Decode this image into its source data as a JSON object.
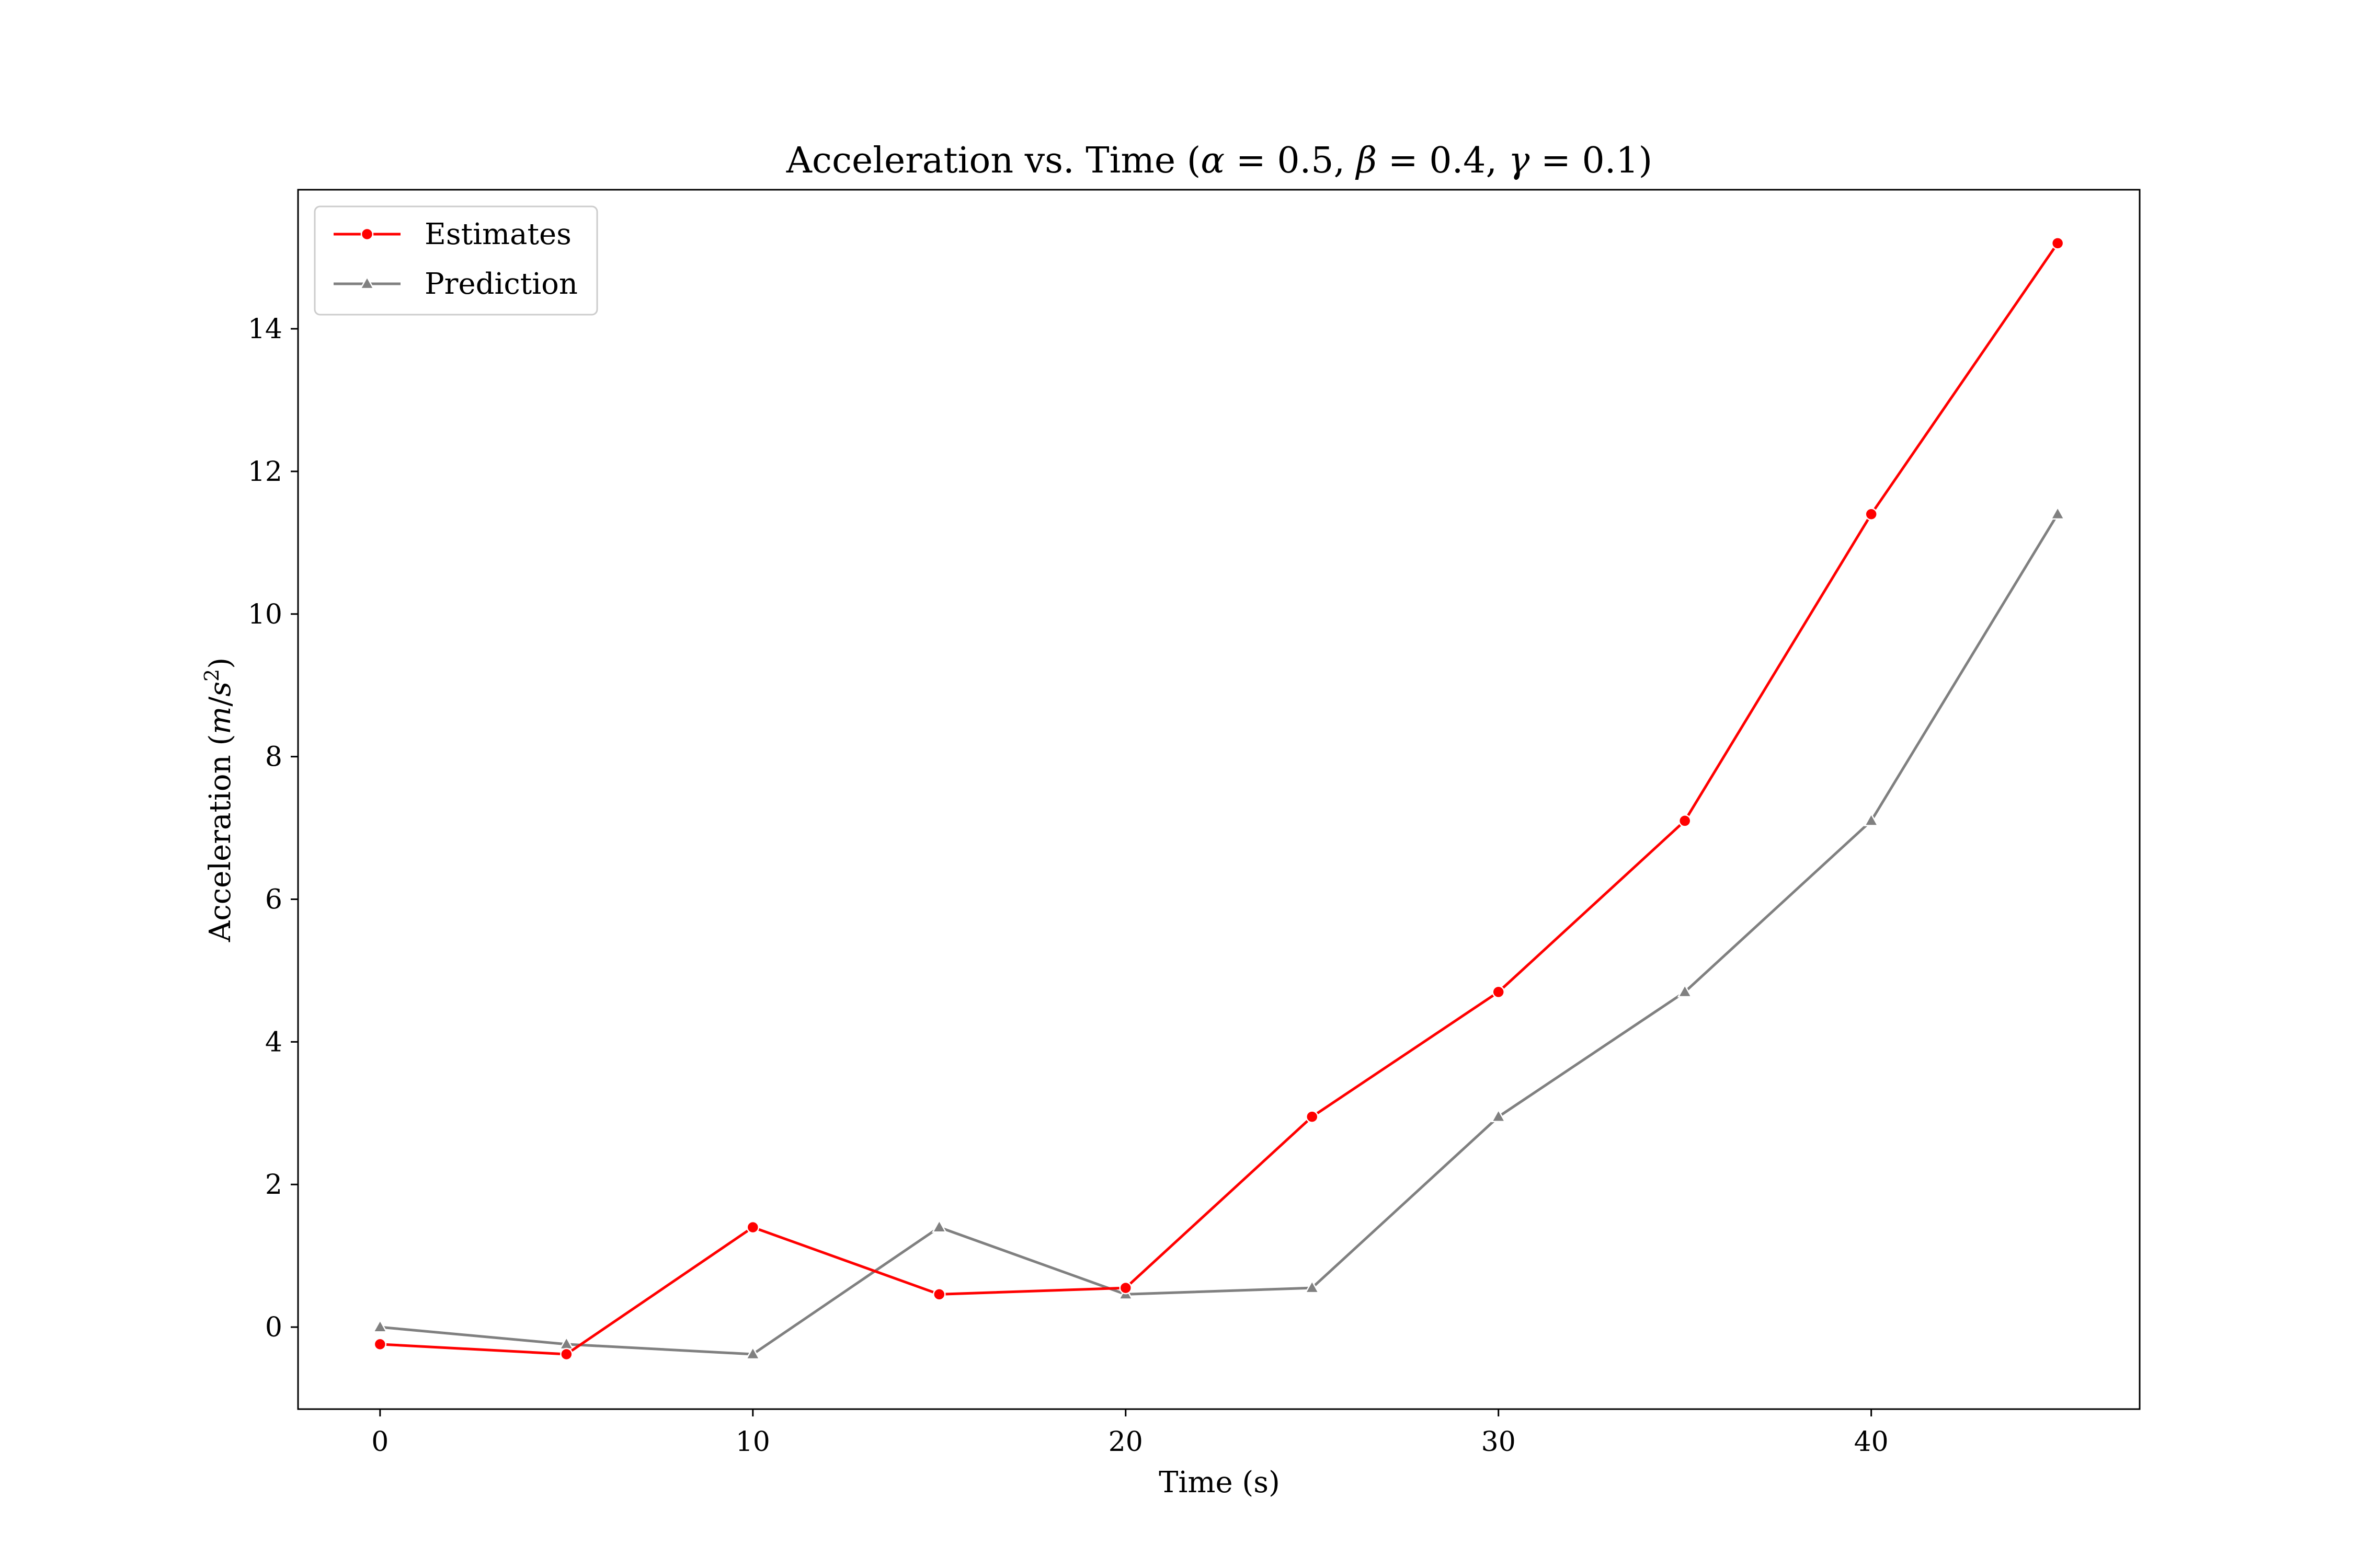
{
  "chart_data": {
    "type": "line",
    "title": {
      "prefix": "Acceleration vs. Time (",
      "alpha_sym": "α",
      "alpha_val": " = 0.5, ",
      "beta_sym": "β",
      "beta_val": " = 0.4, ",
      "gamma_sym": "γ",
      "gamma_val": " = 0.1)"
    },
    "xlabel": "Time (s)",
    "ylabel": {
      "prefix": "Acceleration (",
      "unit_m": "m",
      "unit_slash": "/",
      "unit_s": "s",
      "unit_exp": "2",
      "suffix": ")"
    },
    "xlim": [
      -2.2,
      47.2
    ],
    "ylim": [
      -1.15,
      15.95
    ],
    "x_ticks": [
      0,
      10,
      20,
      30,
      40
    ],
    "y_ticks": [
      0,
      2,
      4,
      6,
      8,
      10,
      12,
      14
    ],
    "grid": false,
    "legend_position": "top-left",
    "series": [
      {
        "name": "Estimates",
        "color": "#ff0000",
        "marker": "circle",
        "x": [
          0,
          5,
          10,
          15,
          20,
          25,
          30,
          35,
          40,
          45
        ],
        "y": [
          -0.24,
          -0.38,
          1.4,
          0.46,
          0.55,
          2.95,
          4.7,
          7.1,
          11.4,
          15.2
        ]
      },
      {
        "name": "Prediction",
        "color": "#808080",
        "marker": "triangle",
        "x": [
          0,
          5,
          10,
          15,
          20,
          25,
          30,
          35,
          40,
          45
        ],
        "y": [
          0.0,
          -0.24,
          -0.38,
          1.4,
          0.46,
          0.55,
          2.95,
          4.7,
          7.1,
          11.4
        ]
      }
    ]
  }
}
